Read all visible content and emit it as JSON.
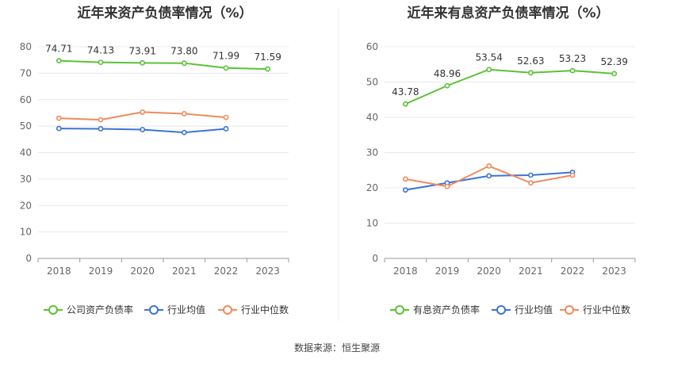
{
  "source_label": "数据来源：恒生聚源",
  "chart_data": [
    {
      "type": "line",
      "title": "近年来资产负债率情况（%）",
      "x": [
        "2018",
        "2019",
        "2020",
        "2021",
        "2022",
        "2023"
      ],
      "ylim": [
        0,
        80
      ],
      "yticks": [
        0,
        10,
        20,
        30,
        40,
        50,
        60,
        70,
        80
      ],
      "grid": true,
      "legend_placement": "bottom",
      "series": [
        {
          "name": "公司资产负债率",
          "color": "#5bc236",
          "values": [
            74.71,
            74.13,
            73.91,
            73.8,
            71.99,
            71.59
          ],
          "labels": [
            "74.71",
            "74.13",
            "73.91",
            "73.80",
            "71.99",
            "71.59"
          ]
        },
        {
          "name": "行业均值",
          "color": "#3a74d8",
          "values": [
            49.1,
            49.0,
            48.7,
            47.6,
            49.0,
            null
          ]
        },
        {
          "name": "行业中位数",
          "color": "#f08a5d",
          "values": [
            53.0,
            52.4,
            55.3,
            54.7,
            53.3,
            null
          ]
        }
      ]
    },
    {
      "type": "line",
      "title": "近年来有息资产负债率情况（%）",
      "x": [
        "2018",
        "2019",
        "2020",
        "2021",
        "2022",
        "2023"
      ],
      "ylim": [
        0,
        60
      ],
      "yticks": [
        0,
        10,
        20,
        30,
        40,
        50,
        60
      ],
      "grid": true,
      "legend_placement": "bottom",
      "series": [
        {
          "name": "有息资产负债率",
          "color": "#5bc236",
          "values": [
            43.78,
            48.96,
            53.54,
            52.63,
            53.23,
            52.39
          ],
          "labels": [
            "43.78",
            "48.96",
            "53.54",
            "52.63",
            "53.23",
            "52.39"
          ]
        },
        {
          "name": "行业均值",
          "color": "#3a74d8",
          "values": [
            19.4,
            21.4,
            23.4,
            23.6,
            24.4,
            null
          ]
        },
        {
          "name": "行业中位数",
          "color": "#f08a5d",
          "values": [
            22.5,
            20.4,
            26.2,
            21.4,
            23.6,
            null
          ]
        }
      ]
    }
  ]
}
